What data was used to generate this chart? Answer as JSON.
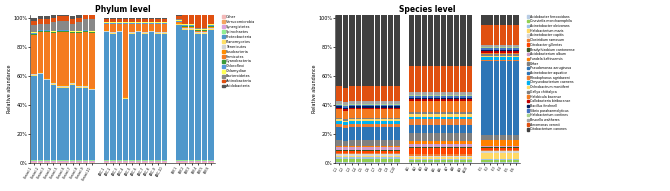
{
  "phylum_title": "Phylum level",
  "species_title": "Species level",
  "ylabel": "Relative abundance",
  "phylum_group_sizes": [
    10,
    10,
    6
  ],
  "phylum_group1_labels": [
    "Control-1",
    "Control-2",
    "Control-3",
    "Control-4",
    "Control-5",
    "Control-6",
    "Control-7",
    "Control-8",
    "Control-9",
    "Control-10"
  ],
  "phylum_group2_labels": [
    "AMC-1",
    "AMC-2",
    "AMC-3",
    "AMC-4",
    "AMC-5",
    "AMC-6",
    "AMC-7",
    "AMC-8",
    "AMC-9",
    "AMC-10"
  ],
  "phylum_group3_labels": [
    "ERY-1",
    "ERY-2",
    "ERY-3",
    "ERY-4",
    "ERY-5",
    "ERY-6"
  ],
  "phylum_legend": [
    "Other",
    "Verrucomicrobia",
    "Synergistetes",
    "Spirochaetes",
    "Proteobacteria",
    "Planomycetes",
    "Tenericutes",
    "Fusobacteria",
    "Firmicutes",
    "Cyanobacteria",
    "Chloroflexi",
    "Chlamydiae",
    "Bacteroidetes",
    "Actinobacteria",
    "Acidobacteria"
  ],
  "phylum_colors": [
    "#f4b8b8",
    "#f4a460",
    "#dda0dd",
    "#90ee90",
    "#4e97cb",
    "#ffe066",
    "#d3d3d3",
    "#ff8c00",
    "#f47b20",
    "#3a9a3a",
    "#5599dd",
    "#ffff55",
    "#888888",
    "#e05010",
    "#555555"
  ],
  "phylum_data": {
    "g1": [
      [
        0.005,
        0.005,
        0.005,
        0.005,
        0.005,
        0.005,
        0.005,
        0.005,
        0.005,
        0.005
      ],
      [
        0.005,
        0.005,
        0.005,
        0.005,
        0.005,
        0.005,
        0.005,
        0.005,
        0.005,
        0.005
      ],
      [
        0.005,
        0.005,
        0.005,
        0.005,
        0.005,
        0.005,
        0.005,
        0.005,
        0.005,
        0.005
      ],
      [
        0.005,
        0.005,
        0.005,
        0.005,
        0.005,
        0.005,
        0.005,
        0.005,
        0.005,
        0.005
      ],
      [
        0.58,
        0.59,
        0.55,
        0.52,
        0.5,
        0.5,
        0.52,
        0.5,
        0.5,
        0.48
      ],
      [
        0.005,
        0.005,
        0.005,
        0.005,
        0.005,
        0.005,
        0.005,
        0.005,
        0.005,
        0.005
      ],
      [
        0.005,
        0.005,
        0.005,
        0.005,
        0.005,
        0.005,
        0.005,
        0.005,
        0.005,
        0.005
      ],
      [
        0.005,
        0.005,
        0.005,
        0.005,
        0.005,
        0.005,
        0.005,
        0.005,
        0.005,
        0.005
      ],
      [
        0.27,
        0.28,
        0.32,
        0.34,
        0.37,
        0.37,
        0.34,
        0.36,
        0.37,
        0.38
      ],
      [
        0.005,
        0.005,
        0.005,
        0.005,
        0.005,
        0.005,
        0.005,
        0.005,
        0.005,
        0.005
      ],
      [
        0.005,
        0.005,
        0.005,
        0.005,
        0.005,
        0.005,
        0.005,
        0.005,
        0.005,
        0.005
      ],
      [
        0.005,
        0.005,
        0.005,
        0.005,
        0.005,
        0.005,
        0.005,
        0.005,
        0.005,
        0.005
      ],
      [
        0.05,
        0.04,
        0.04,
        0.06,
        0.06,
        0.06,
        0.05,
        0.06,
        0.07,
        0.08
      ],
      [
        0.03,
        0.03,
        0.03,
        0.03,
        0.03,
        0.03,
        0.03,
        0.03,
        0.03,
        0.03
      ],
      [
        0.02,
        0.02,
        0.02,
        0.02,
        0.02,
        0.02,
        0.02,
        0.02,
        0.02,
        0.02
      ]
    ],
    "g2": [
      [
        0.005,
        0.005,
        0.005,
        0.005,
        0.005,
        0.005,
        0.005,
        0.005,
        0.005,
        0.005
      ],
      [
        0.005,
        0.005,
        0.005,
        0.005,
        0.005,
        0.005,
        0.005,
        0.005,
        0.005,
        0.005
      ],
      [
        0.005,
        0.005,
        0.005,
        0.005,
        0.005,
        0.005,
        0.005,
        0.005,
        0.005,
        0.005
      ],
      [
        0.005,
        0.005,
        0.005,
        0.005,
        0.005,
        0.005,
        0.005,
        0.005,
        0.005,
        0.005
      ],
      [
        0.88,
        0.87,
        0.88,
        0.42,
        0.87,
        0.88,
        0.87,
        0.88,
        0.87,
        0.87
      ],
      [
        0.005,
        0.005,
        0.005,
        0.005,
        0.005,
        0.005,
        0.005,
        0.005,
        0.005,
        0.005
      ],
      [
        0.005,
        0.005,
        0.005,
        0.005,
        0.005,
        0.005,
        0.005,
        0.005,
        0.005,
        0.005
      ],
      [
        0.005,
        0.005,
        0.005,
        0.005,
        0.005,
        0.005,
        0.005,
        0.005,
        0.005,
        0.005
      ],
      [
        0.04,
        0.05,
        0.04,
        0.5,
        0.05,
        0.04,
        0.05,
        0.04,
        0.05,
        0.05
      ],
      [
        0.005,
        0.005,
        0.005,
        0.005,
        0.005,
        0.005,
        0.005,
        0.005,
        0.005,
        0.005
      ],
      [
        0.005,
        0.005,
        0.005,
        0.005,
        0.005,
        0.005,
        0.005,
        0.005,
        0.005,
        0.005
      ],
      [
        0.005,
        0.005,
        0.005,
        0.005,
        0.005,
        0.005,
        0.005,
        0.005,
        0.005,
        0.005
      ],
      [
        0.005,
        0.005,
        0.005,
        0.005,
        0.005,
        0.005,
        0.005,
        0.005,
        0.005,
        0.005
      ],
      [
        0.015,
        0.015,
        0.015,
        0.015,
        0.015,
        0.015,
        0.015,
        0.015,
        0.015,
        0.015
      ],
      [
        0.01,
        0.01,
        0.01,
        0.01,
        0.01,
        0.01,
        0.01,
        0.01,
        0.01,
        0.01
      ]
    ],
    "g3": [
      [
        0.005,
        0.005,
        0.005,
        0.005,
        0.005,
        0.005
      ],
      [
        0.005,
        0.005,
        0.005,
        0.005,
        0.005,
        0.005
      ],
      [
        0.005,
        0.005,
        0.005,
        0.005,
        0.005,
        0.005
      ],
      [
        0.005,
        0.005,
        0.005,
        0.005,
        0.005,
        0.005
      ],
      [
        0.93,
        0.9,
        0.9,
        0.87,
        0.87,
        0.9
      ],
      [
        0.005,
        0.005,
        0.005,
        0.005,
        0.005,
        0.005
      ],
      [
        0.005,
        0.005,
        0.005,
        0.005,
        0.005,
        0.005
      ],
      [
        0.005,
        0.005,
        0.005,
        0.005,
        0.005,
        0.005
      ],
      [
        0.005,
        0.005,
        0.005,
        0.005,
        0.005,
        0.005
      ],
      [
        0.005,
        0.005,
        0.005,
        0.005,
        0.005,
        0.005
      ],
      [
        0.005,
        0.005,
        0.005,
        0.005,
        0.005,
        0.005
      ],
      [
        0.005,
        0.005,
        0.005,
        0.005,
        0.005,
        0.005
      ],
      [
        0.005,
        0.005,
        0.005,
        0.005,
        0.005,
        0.005
      ],
      [
        0.02,
        0.06,
        0.07,
        0.1,
        0.1,
        0.07
      ],
      [
        0.02,
        0.02,
        0.02,
        0.02,
        0.02,
        0.02
      ]
    ]
  },
  "species_legend": [
    "Acidobacter ferrooxidans",
    "Onevietla monchaerophila",
    "Acinetobacter oleivorans",
    "Halobacterium maris",
    "Acinetobacter capitis",
    "Clostridium ramosum",
    "Citrobacter gillentas",
    "Bradyrhizobium cantonense",
    "Acidobacterium album",
    "Fundela kaltinoensis",
    "Other",
    "Pseudomonas aeruginosa",
    "Acinetobacter aquatice",
    "Rhodophanus agridaeeni",
    "Chryseobacterium caenens",
    "Ochrobactrum montiferri",
    "Gallya chittalyca",
    "Halobicula bacense",
    "Callobacteria biribacense",
    "Bacillus finohnell",
    "Vibrio parahaemolyticus",
    "Halobacterium contines",
    "Brucella waltheres",
    "Aeromonas veronii",
    "Citobacterium canones"
  ],
  "species_colors": [
    "#b8cce4",
    "#92d050",
    "#9dc3e6",
    "#ffd966",
    "#d6d6d6",
    "#ed7d31",
    "#ff4500",
    "#375623",
    "#cc99c9",
    "#ff8000",
    "#808080",
    "#2e75b6",
    "#2e75b6",
    "#ed7d31",
    "#00b0f0",
    "#ffd966",
    "#7f7f7f",
    "#f47b20",
    "#c00000",
    "#002060",
    "#4472c4",
    "#a9d18e",
    "#a5a5a5",
    "#e05010",
    "#404040"
  ],
  "species_data": {
    "g1": [
      [
        0.01,
        0.01,
        0.01,
        0.01,
        0.01,
        0.01,
        0.01,
        0.01,
        0.01,
        0.01
      ],
      [
        0.02,
        0.02,
        0.02,
        0.02,
        0.02,
        0.02,
        0.02,
        0.02,
        0.02,
        0.02
      ],
      [
        0.01,
        0.01,
        0.01,
        0.01,
        0.01,
        0.01,
        0.01,
        0.01,
        0.01,
        0.01
      ],
      [
        0.01,
        0.01,
        0.01,
        0.01,
        0.01,
        0.01,
        0.01,
        0.01,
        0.01,
        0.01
      ],
      [
        0.01,
        0.01,
        0.01,
        0.01,
        0.01,
        0.01,
        0.01,
        0.01,
        0.01,
        0.01
      ],
      [
        0.01,
        0.01,
        0.01,
        0.01,
        0.01,
        0.01,
        0.01,
        0.01,
        0.01,
        0.01
      ],
      [
        0.01,
        0.01,
        0.01,
        0.01,
        0.01,
        0.01,
        0.01,
        0.01,
        0.01,
        0.01
      ],
      [
        0.01,
        0.01,
        0.01,
        0.01,
        0.01,
        0.01,
        0.01,
        0.01,
        0.01,
        0.01
      ],
      [
        0.02,
        0.02,
        0.02,
        0.02,
        0.02,
        0.02,
        0.02,
        0.02,
        0.02,
        0.02
      ],
      [
        0.01,
        0.01,
        0.01,
        0.01,
        0.01,
        0.01,
        0.01,
        0.01,
        0.01,
        0.01
      ],
      [
        0.04,
        0.03,
        0.04,
        0.04,
        0.04,
        0.04,
        0.04,
        0.04,
        0.04,
        0.04
      ],
      [
        0.01,
        0.01,
        0.01,
        0.01,
        0.01,
        0.01,
        0.01,
        0.01,
        0.01,
        0.01
      ],
      [
        0.08,
        0.08,
        0.08,
        0.08,
        0.08,
        0.08,
        0.08,
        0.08,
        0.08,
        0.08
      ],
      [
        0.02,
        0.02,
        0.02,
        0.02,
        0.02,
        0.02,
        0.02,
        0.02,
        0.02,
        0.02
      ],
      [
        0.02,
        0.02,
        0.02,
        0.02,
        0.02,
        0.02,
        0.02,
        0.02,
        0.02,
        0.02
      ],
      [
        0.01,
        0.01,
        0.01,
        0.01,
        0.01,
        0.01,
        0.01,
        0.01,
        0.01,
        0.01
      ],
      [
        0.01,
        0.01,
        0.01,
        0.01,
        0.01,
        0.01,
        0.01,
        0.01,
        0.01,
        0.01
      ],
      [
        0.06,
        0.06,
        0.06,
        0.06,
        0.06,
        0.06,
        0.06,
        0.06,
        0.06,
        0.06
      ],
      [
        0.01,
        0.01,
        0.01,
        0.01,
        0.01,
        0.01,
        0.01,
        0.01,
        0.01,
        0.01
      ],
      [
        0.01,
        0.01,
        0.01,
        0.01,
        0.01,
        0.01,
        0.01,
        0.01,
        0.01,
        0.01
      ],
      [
        0.01,
        0.01,
        0.01,
        0.01,
        0.01,
        0.01,
        0.01,
        0.01,
        0.01,
        0.01
      ],
      [
        0.01,
        0.01,
        0.01,
        0.01,
        0.01,
        0.01,
        0.01,
        0.01,
        0.01,
        0.01
      ],
      [
        0.02,
        0.02,
        0.02,
        0.02,
        0.02,
        0.02,
        0.02,
        0.02,
        0.02,
        0.02
      ],
      [
        0.1,
        0.1,
        0.1,
        0.1,
        0.1,
        0.1,
        0.1,
        0.1,
        0.1,
        0.1
      ],
      [
        0.56,
        0.56,
        0.56,
        0.56,
        0.56,
        0.56,
        0.56,
        0.56,
        0.56,
        0.56
      ]
    ],
    "g2": [
      [
        0.01,
        0.01,
        0.01,
        0.01,
        0.01,
        0.01,
        0.01,
        0.01,
        0.01,
        0.01
      ],
      [
        0.01,
        0.01,
        0.01,
        0.01,
        0.01,
        0.01,
        0.01,
        0.01,
        0.01,
        0.01
      ],
      [
        0.01,
        0.01,
        0.01,
        0.01,
        0.01,
        0.01,
        0.01,
        0.01,
        0.01,
        0.01
      ],
      [
        0.01,
        0.01,
        0.01,
        0.01,
        0.01,
        0.01,
        0.01,
        0.01,
        0.01,
        0.01
      ],
      [
        0.01,
        0.01,
        0.01,
        0.01,
        0.01,
        0.01,
        0.01,
        0.01,
        0.01,
        0.01
      ],
      [
        0.01,
        0.01,
        0.01,
        0.01,
        0.01,
        0.01,
        0.01,
        0.01,
        0.01,
        0.01
      ],
      [
        0.04,
        0.04,
        0.04,
        0.04,
        0.04,
        0.04,
        0.04,
        0.04,
        0.04,
        0.04
      ],
      [
        0.01,
        0.01,
        0.01,
        0.01,
        0.01,
        0.01,
        0.01,
        0.01,
        0.01,
        0.01
      ],
      [
        0.02,
        0.02,
        0.02,
        0.02,
        0.02,
        0.02,
        0.02,
        0.02,
        0.02,
        0.02
      ],
      [
        0.02,
        0.02,
        0.02,
        0.02,
        0.02,
        0.02,
        0.02,
        0.02,
        0.02,
        0.02
      ],
      [
        0.06,
        0.06,
        0.06,
        0.06,
        0.06,
        0.06,
        0.06,
        0.06,
        0.06,
        0.06
      ],
      [
        0.01,
        0.01,
        0.01,
        0.01,
        0.01,
        0.01,
        0.01,
        0.01,
        0.01,
        0.01
      ],
      [
        0.04,
        0.04,
        0.04,
        0.04,
        0.04,
        0.04,
        0.04,
        0.04,
        0.04,
        0.04
      ],
      [
        0.04,
        0.04,
        0.04,
        0.04,
        0.04,
        0.04,
        0.04,
        0.04,
        0.04,
        0.04
      ],
      [
        0.02,
        0.02,
        0.02,
        0.02,
        0.02,
        0.02,
        0.02,
        0.02,
        0.02,
        0.02
      ],
      [
        0.02,
        0.02,
        0.02,
        0.02,
        0.02,
        0.02,
        0.02,
        0.02,
        0.02,
        0.02
      ],
      [
        0.01,
        0.01,
        0.01,
        0.01,
        0.01,
        0.01,
        0.01,
        0.01,
        0.01,
        0.01
      ],
      [
        0.08,
        0.08,
        0.08,
        0.08,
        0.08,
        0.08,
        0.08,
        0.08,
        0.08,
        0.08
      ],
      [
        0.01,
        0.01,
        0.01,
        0.01,
        0.01,
        0.01,
        0.01,
        0.01,
        0.01,
        0.01
      ],
      [
        0.01,
        0.01,
        0.01,
        0.01,
        0.01,
        0.01,
        0.01,
        0.01,
        0.01,
        0.01
      ],
      [
        0.01,
        0.01,
        0.01,
        0.01,
        0.01,
        0.01,
        0.01,
        0.01,
        0.01,
        0.01
      ],
      [
        0.01,
        0.01,
        0.01,
        0.01,
        0.01,
        0.01,
        0.01,
        0.01,
        0.01,
        0.01
      ],
      [
        0.02,
        0.02,
        0.02,
        0.02,
        0.02,
        0.02,
        0.02,
        0.02,
        0.02,
        0.02
      ],
      [
        0.18,
        0.18,
        0.18,
        0.18,
        0.18,
        0.18,
        0.18,
        0.18,
        0.18,
        0.18
      ],
      [
        0.35,
        0.35,
        0.35,
        0.35,
        0.35,
        0.35,
        0.35,
        0.35,
        0.35,
        0.35
      ]
    ],
    "g3": [
      [
        0.01,
        0.01,
        0.01,
        0.01,
        0.01,
        0.01
      ],
      [
        0.01,
        0.01,
        0.01,
        0.01,
        0.01,
        0.01
      ],
      [
        0.01,
        0.01,
        0.01,
        0.01,
        0.01,
        0.01
      ],
      [
        0.04,
        0.04,
        0.04,
        0.04,
        0.04,
        0.04
      ],
      [
        0.01,
        0.01,
        0.01,
        0.01,
        0.01,
        0.01
      ],
      [
        0.01,
        0.01,
        0.01,
        0.01,
        0.01,
        0.01
      ],
      [
        0.01,
        0.01,
        0.01,
        0.01,
        0.01,
        0.01
      ],
      [
        0.01,
        0.01,
        0.01,
        0.01,
        0.01,
        0.01
      ],
      [
        0.01,
        0.01,
        0.01,
        0.01,
        0.01,
        0.01
      ],
      [
        0.04,
        0.04,
        0.04,
        0.04,
        0.04,
        0.04
      ],
      [
        0.03,
        0.03,
        0.03,
        0.03,
        0.03,
        0.03
      ],
      [
        0.01,
        0.01,
        0.01,
        0.01,
        0.01,
        0.01
      ],
      [
        0.5,
        0.5,
        0.5,
        0.5,
        0.5,
        0.5
      ],
      [
        0.01,
        0.01,
        0.01,
        0.01,
        0.01,
        0.01
      ],
      [
        0.02,
        0.02,
        0.02,
        0.02,
        0.02,
        0.02
      ],
      [
        0.01,
        0.01,
        0.01,
        0.01,
        0.01,
        0.01
      ],
      [
        0.01,
        0.01,
        0.01,
        0.01,
        0.01,
        0.01
      ],
      [
        0.01,
        0.01,
        0.01,
        0.01,
        0.01,
        0.01
      ],
      [
        0.01,
        0.01,
        0.01,
        0.01,
        0.01,
        0.01
      ],
      [
        0.01,
        0.01,
        0.01,
        0.01,
        0.01,
        0.01
      ],
      [
        0.01,
        0.01,
        0.01,
        0.01,
        0.01,
        0.01
      ],
      [
        0.01,
        0.01,
        0.01,
        0.01,
        0.01,
        0.01
      ],
      [
        0.01,
        0.01,
        0.01,
        0.01,
        0.01,
        0.01
      ],
      [
        0.14,
        0.14,
        0.14,
        0.14,
        0.14,
        0.14
      ],
      [
        0.12,
        0.12,
        0.12,
        0.12,
        0.12,
        0.12
      ]
    ]
  },
  "background_color": "#ffffff"
}
